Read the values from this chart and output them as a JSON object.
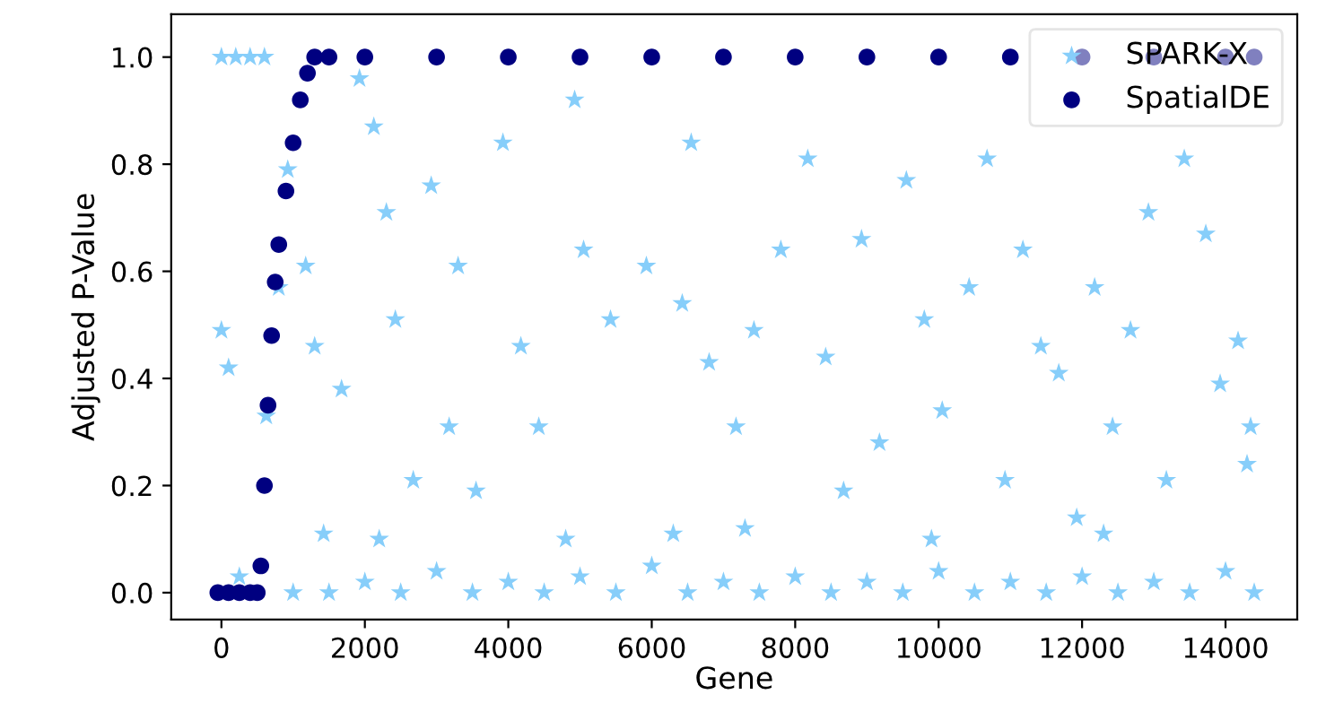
{
  "chart_data": {
    "type": "scatter",
    "xlabel": "Gene",
    "ylabel": "Adjusted P-Value",
    "xlim": [
      -700,
      15000
    ],
    "ylim": [
      -0.05,
      1.08
    ],
    "xticks": [
      0,
      2000,
      4000,
      6000,
      8000,
      10000,
      12000,
      14000
    ],
    "yticks": [
      {
        "value": 0,
        "label": "0.0"
      },
      {
        "value": 0.2,
        "label": "0.2"
      },
      {
        "value": 0.4,
        "label": "0.4"
      },
      {
        "value": 0.6,
        "label": "0.6"
      },
      {
        "value": 0.8,
        "label": "0.8"
      },
      {
        "value": 1,
        "label": "1.0"
      }
    ],
    "grid": false,
    "legend": "top right",
    "series": [
      {
        "name": "SPARK-X",
        "color": "#87cefa",
        "marker": "star",
        "x": [
          0,
          200,
          400,
          600,
          625,
          800,
          925,
          1175,
          1300,
          1425,
          1675,
          1925,
          2125,
          2300,
          2425,
          2675,
          2925,
          3175,
          3300,
          3550,
          3925,
          4175,
          4425,
          4925,
          5050,
          5425,
          5925,
          6300,
          6425,
          6800,
          6550,
          7175,
          7425,
          7800,
          8175,
          8425,
          8675,
          8925,
          9175,
          9550,
          9800,
          10050,
          10425,
          10675,
          10925,
          11175,
          11425,
          11675,
          11925,
          12175,
          12425,
          12675,
          12925,
          13175,
          13425,
          13725,
          13925,
          14175,
          14300,
          14350,
          0,
          100,
          250,
          1000,
          1500,
          2000,
          2500,
          3000,
          3500,
          4000,
          4500,
          5000,
          5500,
          6000,
          6500,
          7000,
          7500,
          8000,
          8500,
          9000,
          9500,
          10000,
          10500,
          11000,
          11500,
          12000,
          12500,
          13000,
          13500,
          14000,
          14400,
          2200,
          4800,
          7300,
          9900,
          12300
        ],
        "values": [
          1,
          1,
          1,
          1,
          0.33,
          0.57,
          0.79,
          0.61,
          0.46,
          0.11,
          0.38,
          0.96,
          0.87,
          0.71,
          0.51,
          0.21,
          0.76,
          0.31,
          0.61,
          0.19,
          0.84,
          0.46,
          0.31,
          0.92,
          0.64,
          0.51,
          0.61,
          0.11,
          0.54,
          0.43,
          0.84,
          0.31,
          0.49,
          0.64,
          0.81,
          0.44,
          0.19,
          0.66,
          0.28,
          0.77,
          0.51,
          0.34,
          0.57,
          0.81,
          0.21,
          0.64,
          0.46,
          0.41,
          0.14,
          0.57,
          0.31,
          0.49,
          0.71,
          0.21,
          0.81,
          0.67,
          0.39,
          0.47,
          0.24,
          0.31,
          0.49,
          0.42,
          0.03,
          0,
          0,
          0.02,
          0,
          0.04,
          0,
          0.02,
          0,
          0.03,
          0,
          0.05,
          0,
          0.02,
          0,
          0.03,
          0,
          0.02,
          0,
          0.04,
          0,
          0.02,
          0,
          0.03,
          0,
          0.02,
          0,
          0.04,
          0,
          0.1,
          0.1,
          0.12,
          0.1,
          0.11
        ]
      },
      {
        "name": "SpatialDE",
        "color": "#000080",
        "marker": "circle",
        "x": [
          -50,
          100,
          250,
          400,
          500,
          550,
          600,
          650,
          700,
          750,
          800,
          900,
          1000,
          1100,
          1200,
          1300,
          1500,
          2000,
          3000,
          4000,
          5000,
          6000,
          7000,
          8000,
          9000,
          10000,
          11000,
          12000,
          13000,
          14000,
          14400
        ],
        "values": [
          0,
          0,
          0,
          0,
          0,
          0.05,
          0.2,
          0.35,
          0.48,
          0.58,
          0.65,
          0.75,
          0.84,
          0.92,
          0.97,
          1,
          1,
          1,
          1,
          1,
          1,
          1,
          1,
          1,
          1,
          1,
          1,
          1,
          1,
          1,
          1
        ]
      }
    ]
  }
}
